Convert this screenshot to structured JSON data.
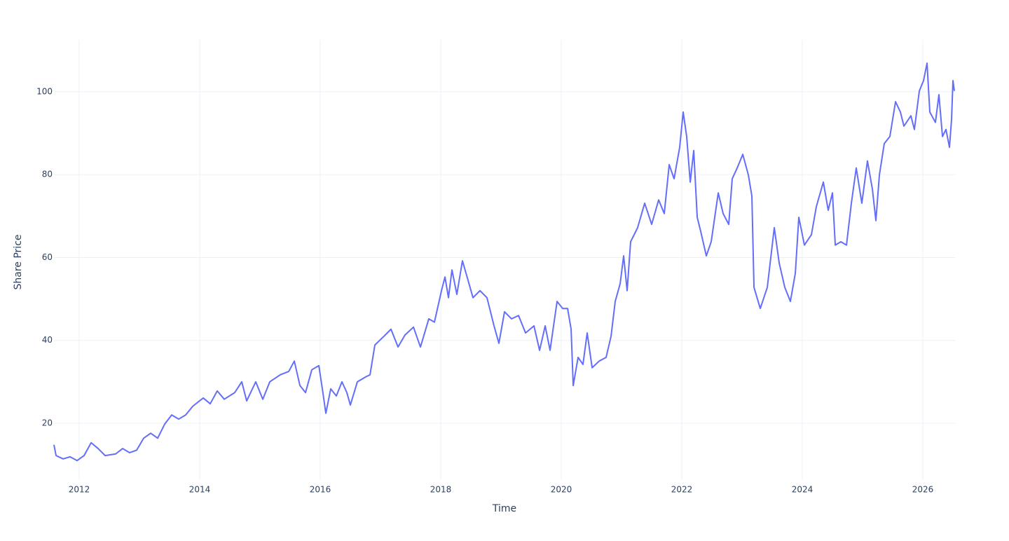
{
  "chart_data": {
    "type": "line",
    "x_label": "Time",
    "y_label": "Share Price",
    "color": "#636efa",
    "grid": true,
    "x": [
      2011.581,
      2011.616,
      2011.733,
      2011.849,
      2011.965,
      2012.081,
      2012.198,
      2012.314,
      2012.43,
      2012.605,
      2012.721,
      2012.837,
      2012.953,
      2013.07,
      2013.186,
      2013.302,
      2013.419,
      2013.535,
      2013.651,
      2013.767,
      2013.884,
      2014.058,
      2014.174,
      2014.291,
      2014.407,
      2014.581,
      2014.698,
      2014.779,
      2014.93,
      2015.047,
      2015.163,
      2015.337,
      2015.477,
      2015.57,
      2015.663,
      2015.756,
      2015.86,
      2015.977,
      2016.035,
      2016.093,
      2016.174,
      2016.267,
      2016.36,
      2016.442,
      2016.5,
      2016.616,
      2016.756,
      2016.826,
      2016.907,
      2017.058,
      2017.174,
      2017.291,
      2017.407,
      2017.547,
      2017.663,
      2017.802,
      2017.895,
      2018.012,
      2018.07,
      2018.128,
      2018.186,
      2018.267,
      2018.36,
      2018.453,
      2018.535,
      2018.651,
      2018.767,
      2018.884,
      2018.965,
      2019.058,
      2019.174,
      2019.291,
      2019.407,
      2019.547,
      2019.64,
      2019.733,
      2019.814,
      2019.93,
      2020.023,
      2020.105,
      2020.163,
      2020.198,
      2020.279,
      2020.36,
      2020.43,
      2020.512,
      2020.628,
      2020.744,
      2020.826,
      2020.895,
      2020.977,
      2021.035,
      2021.093,
      2021.151,
      2021.267,
      2021.384,
      2021.5,
      2021.616,
      2021.709,
      2021.791,
      2021.872,
      2021.965,
      2022.023,
      2022.081,
      2022.14,
      2022.198,
      2022.256,
      2022.314,
      2022.407,
      2022.488,
      2022.605,
      2022.686,
      2022.779,
      2022.837,
      2022.919,
      2023.012,
      2023.105,
      2023.163,
      2023.198,
      2023.302,
      2023.419,
      2023.535,
      2023.616,
      2023.709,
      2023.802,
      2023.884,
      2023.942,
      2024.035,
      2024.151,
      2024.233,
      2024.349,
      2024.43,
      2024.5,
      2024.547,
      2024.64,
      2024.733,
      2024.814,
      2024.895,
      2024.988,
      2025.081,
      2025.163,
      2025.221,
      2025.279,
      2025.36,
      2025.453,
      2025.547,
      2025.628,
      2025.686,
      2025.802,
      2025.86,
      2025.942,
      2026.012,
      2026.07,
      2026.116,
      2026.209,
      2026.267,
      2026.326,
      2026.384,
      2026.442,
      2026.477,
      2026.5,
      2026.523
    ],
    "values": [
      14.8,
      12.2,
      11.4,
      11.9,
      11,
      12.2,
      15.3,
      13.9,
      12.2,
      12.6,
      13.9,
      12.9,
      13.5,
      16.4,
      17.6,
      16.4,
      19.8,
      22,
      21,
      22,
      24.1,
      26.1,
      24.7,
      27.8,
      25.8,
      27.4,
      30,
      25.4,
      30,
      25.8,
      30,
      31.7,
      32.5,
      35,
      29.1,
      27.4,
      32.9,
      33.9,
      28.3,
      22.4,
      28.3,
      26.6,
      30,
      27.4,
      24.4,
      30,
      31.2,
      31.7,
      38.9,
      41,
      42.7,
      38.4,
      41.3,
      43.2,
      38.4,
      45.2,
      44.4,
      52,
      55.3,
      50.3,
      57,
      51.1,
      59.2,
      54.5,
      50.3,
      52,
      50.3,
      43.5,
      39.3,
      46.9,
      45.2,
      46,
      41.8,
      43.5,
      37.6,
      43.5,
      37.6,
      49.4,
      47.7,
      47.7,
      42.7,
      29.1,
      35.9,
      34.2,
      41.8,
      33.4,
      35,
      35.9,
      41,
      49.4,
      53.7,
      60.4,
      52,
      63.8,
      67.2,
      73.1,
      68,
      73.9,
      70.6,
      82.4,
      79,
      86.6,
      95.1,
      89.2,
      78.2,
      85.8,
      69.7,
      66.3,
      60.4,
      63.8,
      75.6,
      70.6,
      68,
      79,
      81.6,
      84.9,
      79.9,
      74.8,
      52.8,
      47.7,
      52.8,
      67.2,
      58.7,
      52.8,
      49.4,
      56.2,
      69.7,
      63,
      65.5,
      72.3,
      78.2,
      71.4,
      75.6,
      63,
      63.8,
      63,
      73.1,
      81.6,
      73.1,
      83.3,
      76.5,
      68.9,
      79.9,
      87.5,
      89.2,
      97.6,
      95.1,
      91.7,
      94.2,
      90.9,
      100.2,
      102.7,
      106.9,
      95.1,
      92.6,
      99.3,
      89.2,
      90.9,
      86.6,
      93.4,
      102.7,
      100.2
    ],
    "xlim": [
      2011.581,
      2026.523
    ],
    "xticks": [
      2012,
      2014,
      2016,
      2018,
      2020,
      2022,
      2024,
      2026
    ],
    "ylim": [
      6.3,
      112.5
    ],
    "yticks": [
      20,
      40,
      60,
      80,
      100
    ]
  }
}
